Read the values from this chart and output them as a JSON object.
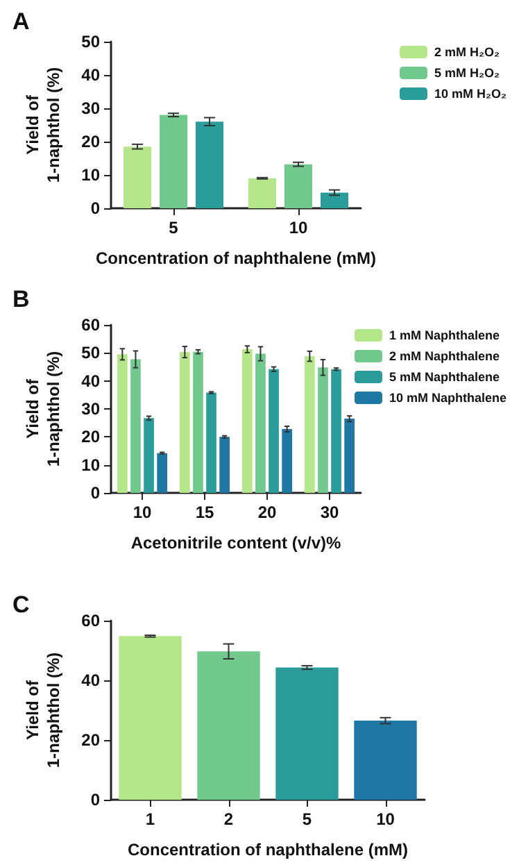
{
  "chart_data": [
    {
      "type": "bar",
      "title": "A",
      "xlabel": "Concentration of naphthalene (mM)",
      "ylabel": "Yield of\n1-naphthol (%)",
      "categories": [
        "5",
        "10"
      ],
      "ylim": [
        0,
        50
      ],
      "yticks": [
        0,
        10,
        20,
        30,
        40,
        50
      ],
      "grid": false,
      "legend": "top right",
      "series": [
        {
          "name": "2 mM H₂O₂",
          "color": "#b5e68a",
          "values": [
            18.5,
            9
          ],
          "errors": [
            0.7,
            0.2
          ]
        },
        {
          "name": "5 mM H₂O₂",
          "color": "#72c98e",
          "values": [
            28,
            13.2
          ],
          "errors": [
            0.5,
            0.6
          ]
        },
        {
          "name": "10 mM H₂O₂",
          "color": "#2a9d9a",
          "values": [
            26,
            4.7
          ],
          "errors": [
            1.2,
            0.8
          ]
        }
      ]
    },
    {
      "type": "bar",
      "title": "B",
      "xlabel": "Acetonitrile content (v/v)%",
      "ylabel": "Yield of\n1-naphthol (%)",
      "categories": [
        "10",
        "15",
        "20",
        "30"
      ],
      "ylim": [
        0,
        60
      ],
      "yticks": [
        0,
        10,
        20,
        30,
        40,
        50,
        60
      ],
      "grid": false,
      "legend": "top right",
      "series": [
        {
          "name": "1 mM Naphthalene",
          "color": "#b5e68a",
          "values": [
            49.5,
            50.3,
            51.3,
            48.8
          ],
          "errors": [
            2,
            2,
            1.2,
            1.8
          ]
        },
        {
          "name": "2 mM Naphthalene",
          "color": "#72c98e",
          "values": [
            47.7,
            50.4,
            49.7,
            44.8
          ],
          "errors": [
            3,
            0.7,
            2.5,
            2.8
          ]
        },
        {
          "name": "5 mM Naphthalene",
          "color": "#2a9d9a",
          "values": [
            26.7,
            35.8,
            44.2,
            44.2
          ],
          "errors": [
            0.7,
            0.3,
            0.8,
            0.4
          ]
        },
        {
          "name": "10 mM Naphthalene",
          "color": "#1f77a4",
          "values": [
            14.2,
            20,
            22.8,
            26.5
          ],
          "errors": [
            0.3,
            0.4,
            1,
            1
          ]
        }
      ]
    },
    {
      "type": "bar",
      "title": "C",
      "xlabel": "Concentration of naphthalene (mM)",
      "ylabel": "Yield of\n1-naphthol (%)",
      "categories": [
        "1",
        "2",
        "5",
        "10"
      ],
      "ylim": [
        0,
        60
      ],
      "yticks": [
        0,
        20,
        40,
        60
      ],
      "grid": false,
      "legend": false,
      "series": [
        {
          "colors": [
            "#b5e68a",
            "#72c98e",
            "#2a9d9a",
            "#1f77a4"
          ],
          "values": [
            54.8,
            49.7,
            44.3,
            26.5
          ],
          "errors": [
            0.3,
            2.5,
            0.6,
            1
          ]
        }
      ]
    }
  ]
}
